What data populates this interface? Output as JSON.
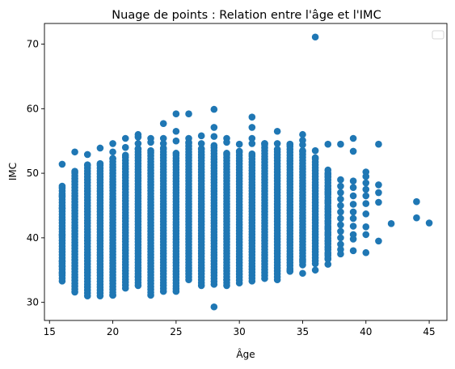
{
  "chart_data": {
    "type": "scatter",
    "title": "Nuage de points : Relation entre l'âge et l'IMC",
    "xlabel": "Âge",
    "ylabel": "IMC",
    "xlim": [
      14.6,
      46.4
    ],
    "ylim": [
      27.2,
      73.2
    ],
    "xticks": [
      15,
      20,
      25,
      30,
      35,
      40,
      45
    ],
    "yticks": [
      30,
      40,
      50,
      60,
      70
    ],
    "color": "#1f77b4",
    "legend_position": "top-right",
    "legend_entries": [],
    "columns": [
      {
        "x": 16,
        "min": 33.3,
        "max": 48.0
      },
      {
        "x": 17,
        "min": 31.6,
        "max": 50.3
      },
      {
        "x": 18,
        "min": 31.0,
        "max": 51.3
      },
      {
        "x": 19,
        "min": 31.0,
        "max": 51.5
      },
      {
        "x": 20,
        "min": 31.1,
        "max": 52.3
      },
      {
        "x": 21,
        "min": 32.2,
        "max": 52.8
      },
      {
        "x": 22,
        "min": 32.6,
        "max": 53.8
      },
      {
        "x": 23,
        "min": 31.1,
        "max": 53.5
      },
      {
        "x": 24,
        "min": 31.7,
        "max": 53.9
      },
      {
        "x": 25,
        "min": 32.1,
        "max": 53.1
      },
      {
        "x": 26,
        "min": 33.5,
        "max": 54.8
      },
      {
        "x": 27,
        "min": 32.6,
        "max": 53.8
      },
      {
        "x": 28,
        "min": 32.8,
        "max": 54.3
      },
      {
        "x": 29,
        "min": 32.6,
        "max": 53.1
      },
      {
        "x": 30,
        "min": 33.0,
        "max": 53.4
      },
      {
        "x": 31,
        "min": 33.3,
        "max": 53.0
      },
      {
        "x": 32,
        "min": 33.7,
        "max": 54.6
      },
      {
        "x": 33,
        "min": 33.5,
        "max": 53.7
      },
      {
        "x": 34,
        "min": 34.8,
        "max": 54.5
      },
      {
        "x": 35,
        "min": 35.8,
        "max": 53.5
      },
      {
        "x": 36,
        "min": 36.0,
        "max": 52.4
      },
      {
        "x": 37,
        "min": 36.8,
        "max": 50.0
      }
    ],
    "points": [
      [
        16,
        51.4
      ],
      [
        16,
        46.5
      ],
      [
        16,
        44.6
      ],
      [
        16,
        40.4
      ],
      [
        16,
        36.3
      ],
      [
        16,
        35.6
      ],
      [
        16,
        34.5
      ],
      [
        17,
        53.3
      ],
      [
        18,
        52.9
      ],
      [
        19,
        53.9
      ],
      [
        20,
        54.6
      ],
      [
        20,
        53.3
      ],
      [
        20,
        31.1
      ],
      [
        21,
        55.4
      ],
      [
        21,
        54.0
      ],
      [
        22,
        56.0
      ],
      [
        22,
        55.6
      ],
      [
        22,
        54.6
      ],
      [
        22,
        34.0
      ],
      [
        23,
        55.4
      ],
      [
        23,
        54.8
      ],
      [
        24,
        57.7
      ],
      [
        24,
        55.4
      ],
      [
        24,
        54.6
      ],
      [
        25,
        59.2
      ],
      [
        25,
        56.5
      ],
      [
        25,
        55.0
      ],
      [
        25,
        31.7
      ],
      [
        26,
        59.2
      ],
      [
        26,
        55.4
      ],
      [
        27,
        55.8
      ],
      [
        27,
        54.6
      ],
      [
        28,
        59.9
      ],
      [
        28,
        57.1
      ],
      [
        28,
        55.7
      ],
      [
        28,
        29.3
      ],
      [
        29,
        55.4
      ],
      [
        29,
        54.8
      ],
      [
        29,
        33.5
      ],
      [
        30,
        54.5
      ],
      [
        31,
        58.7
      ],
      [
        31,
        57.1
      ],
      [
        31,
        55.4
      ],
      [
        31,
        54.6
      ],
      [
        32,
        54.6
      ],
      [
        33,
        56.5
      ],
      [
        33,
        54.6
      ],
      [
        34,
        54.5
      ],
      [
        34,
        35.0
      ],
      [
        35,
        56.0
      ],
      [
        35,
        55.1
      ],
      [
        35,
        54.4
      ],
      [
        35,
        34.5
      ],
      [
        35,
        36.5
      ],
      [
        36,
        71.1
      ],
      [
        36,
        53.5
      ],
      [
        36,
        35.0
      ],
      [
        37,
        54.5
      ],
      [
        37,
        50.5
      ],
      [
        37,
        49.5
      ],
      [
        37,
        48.0
      ],
      [
        37,
        47.5
      ],
      [
        37,
        47.0
      ],
      [
        37,
        45.5
      ],
      [
        37,
        44.5
      ],
      [
        37,
        43.5
      ],
      [
        37,
        42.5
      ],
      [
        37,
        41.5
      ],
      [
        37,
        40.5
      ],
      [
        37,
        39.5
      ],
      [
        37,
        38.5
      ],
      [
        37,
        37.5
      ],
      [
        37,
        36.7
      ],
      [
        37,
        35.9
      ],
      [
        38,
        54.5
      ],
      [
        38,
        49.0
      ],
      [
        38,
        48.0
      ],
      [
        38,
        47.0
      ],
      [
        38,
        46.0
      ],
      [
        38,
        45.0
      ],
      [
        38,
        44.0
      ],
      [
        38,
        43.0
      ],
      [
        38,
        42.0
      ],
      [
        38,
        41.0
      ],
      [
        38,
        40.0
      ],
      [
        38,
        39.0
      ],
      [
        38,
        38.2
      ],
      [
        38,
        37.5
      ],
      [
        39,
        55.4
      ],
      [
        39,
        53.4
      ],
      [
        39,
        48.8
      ],
      [
        39,
        47.8
      ],
      [
        39,
        46.5
      ],
      [
        39,
        45.2
      ],
      [
        39,
        44.0
      ],
      [
        39,
        43.0
      ],
      [
        39,
        41.8
      ],
      [
        39,
        40.5
      ],
      [
        39,
        39.8
      ],
      [
        39,
        38.0
      ],
      [
        40,
        50.2
      ],
      [
        40,
        49.5
      ],
      [
        40,
        48.5
      ],
      [
        40,
        47.5
      ],
      [
        40,
        46.5
      ],
      [
        40,
        45.3
      ],
      [
        40,
        43.7
      ],
      [
        40,
        41.7
      ],
      [
        40,
        40.5
      ],
      [
        40,
        37.7
      ],
      [
        41,
        54.5
      ],
      [
        41,
        48.2
      ],
      [
        41,
        47.0
      ],
      [
        41,
        45.5
      ],
      [
        41,
        39.5
      ],
      [
        42,
        42.2
      ],
      [
        44,
        45.6
      ],
      [
        44,
        43.1
      ],
      [
        45,
        42.3
      ]
    ]
  }
}
